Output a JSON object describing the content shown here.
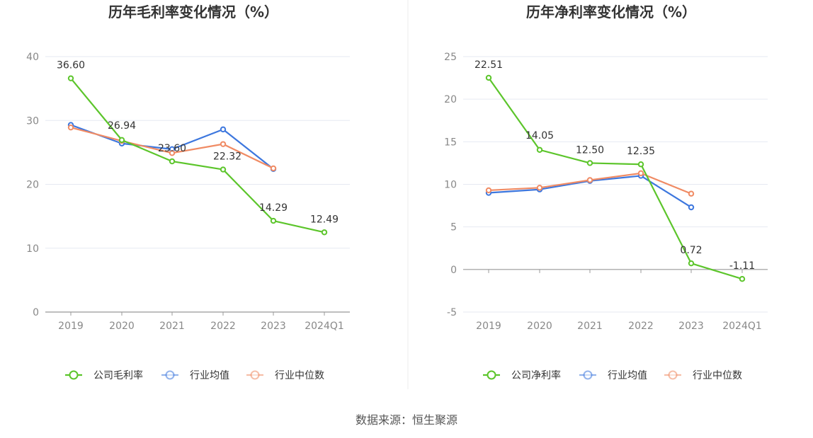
{
  "source_label": "数据来源：恒生聚源",
  "chart_data": [
    {
      "type": "line",
      "title": "历年毛利率变化情况（%）",
      "categories": [
        "2019",
        "2020",
        "2021",
        "2022",
        "2023",
        "2024Q1"
      ],
      "ylim": [
        0,
        40
      ],
      "yticks": [
        0,
        10,
        20,
        30,
        40
      ],
      "grid": true,
      "legend_position": "bottom",
      "series": [
        {
          "name": "公司毛利率",
          "color": "#5cc52b",
          "values": [
            36.6,
            26.94,
            23.6,
            22.32,
            14.29,
            12.49
          ],
          "labels": [
            "36.60",
            "26.94",
            "23.60",
            "22.32",
            "14.29",
            "12.49"
          ]
        },
        {
          "name": "行业均值",
          "color": "#3d77de",
          "values": [
            29.3,
            26.4,
            25.5,
            28.6,
            22.4,
            null
          ]
        },
        {
          "name": "行业中位数",
          "color": "#f08b64",
          "values": [
            28.9,
            26.8,
            24.9,
            26.3,
            22.5,
            null
          ]
        }
      ]
    },
    {
      "type": "line",
      "title": "历年净利率变化情况（%）",
      "categories": [
        "2019",
        "2020",
        "2021",
        "2022",
        "2023",
        "2024Q1"
      ],
      "ylim": [
        -5,
        25
      ],
      "yticks": [
        -5,
        0,
        5,
        10,
        15,
        20,
        25
      ],
      "grid": true,
      "legend_position": "bottom",
      "series": [
        {
          "name": "公司净利率",
          "color": "#5cc52b",
          "values": [
            22.51,
            14.05,
            12.5,
            12.35,
            0.72,
            -1.11
          ],
          "labels": [
            "22.51",
            "14.05",
            "12.50",
            "12.35",
            "0.72",
            "-1.11"
          ]
        },
        {
          "name": "行业均值",
          "color": "#3d77de",
          "values": [
            9.0,
            9.4,
            10.4,
            11.0,
            7.3,
            null
          ]
        },
        {
          "name": "行业中位数",
          "color": "#f08b64",
          "values": [
            9.3,
            9.6,
            10.5,
            11.3,
            8.9,
            null
          ]
        }
      ]
    }
  ]
}
